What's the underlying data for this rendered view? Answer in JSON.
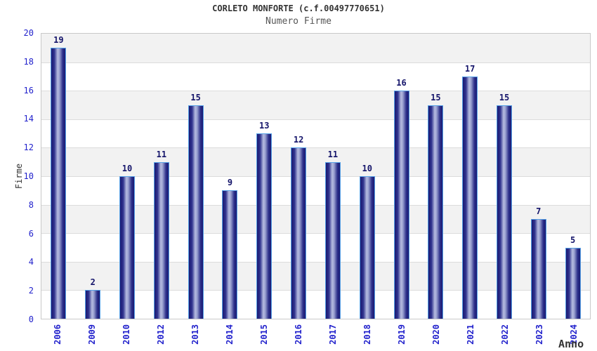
{
  "header": {
    "title": "CORLETO MONFORTE (c.f.00497770651)",
    "subtitle": "Numero Firme"
  },
  "chart_data": {
    "type": "bar",
    "title": "CORLETO MONFORTE (c.f.00497770651)",
    "subtitle": "Numero Firme",
    "xlabel": "Anno",
    "ylabel": "Firme",
    "categories": [
      "2006",
      "2009",
      "2010",
      "2012",
      "2013",
      "2014",
      "2015",
      "2016",
      "2017",
      "2018",
      "2019",
      "2020",
      "2021",
      "2022",
      "2023",
      "2024"
    ],
    "values": [
      19,
      2,
      10,
      11,
      15,
      9,
      13,
      12,
      11,
      10,
      16,
      15,
      17,
      15,
      7,
      5
    ],
    "ylim": [
      0,
      20
    ],
    "ytick_step": 2,
    "yticks": [
      0,
      2,
      4,
      6,
      8,
      10,
      12,
      14,
      16,
      18,
      20
    ],
    "grid": "alternating horizontal bands every 2 units, light gray gridlines",
    "legend": null,
    "colors": {
      "tick_label": "#2222cc",
      "value_label": "#14146a",
      "band_gray": "#f2f2f2",
      "grid_line": "#dcdcdc",
      "plot_border": "#c9c9c9",
      "bar_dark": "#1a1a72",
      "bar_light": "#b6bce0",
      "bar_border": "#55a0e6",
      "title": "#333333",
      "subtitle": "#555555",
      "axis_title": "#333333"
    }
  }
}
